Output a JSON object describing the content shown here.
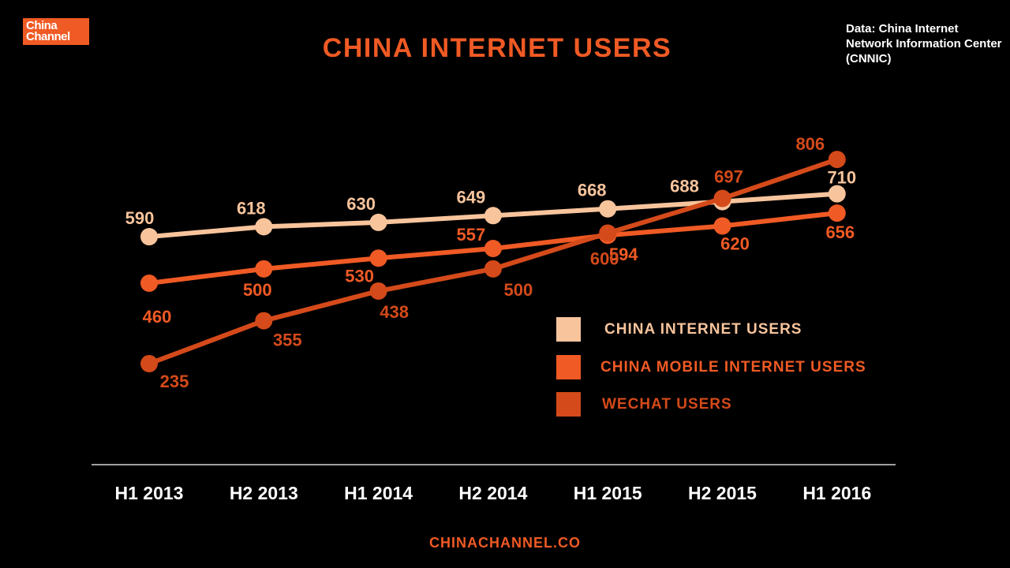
{
  "logo": {
    "line1": "China",
    "line2": "Channel"
  },
  "title": "CHINA INTERNET USERS",
  "source": "Data: China Internet Network Information Center (CNNIC)",
  "footer": "CHINACHANNEL.CO",
  "colors": {
    "internet": "#f8c49c",
    "mobile": "#f05a24",
    "wechat": "#d44a1a",
    "axis": "#ffffff"
  },
  "chart_data": {
    "type": "line",
    "title": "CHINA INTERNET USERS",
    "categories": [
      "H1 2013",
      "H2 2013",
      "H1 2014",
      "H2 2014",
      "H1 2015",
      "H2 2015",
      "H1 2016"
    ],
    "series": [
      {
        "name": "CHINA INTERNET USERS",
        "values": [
          590,
          618,
          630,
          649,
          668,
          688,
          710
        ],
        "color": "#f8c49c"
      },
      {
        "name": "CHINA MOBILE INTERNET USERS",
        "values": [
          460,
          500,
          530,
          557,
          594,
          620,
          656
        ],
        "color": "#f05a24"
      },
      {
        "name": "WECHAT USERS",
        "values": [
          235,
          355,
          438,
          500,
          600,
          697,
          806
        ],
        "color": "#d44a1a"
      }
    ],
    "legend_position": "right",
    "grid": false
  }
}
